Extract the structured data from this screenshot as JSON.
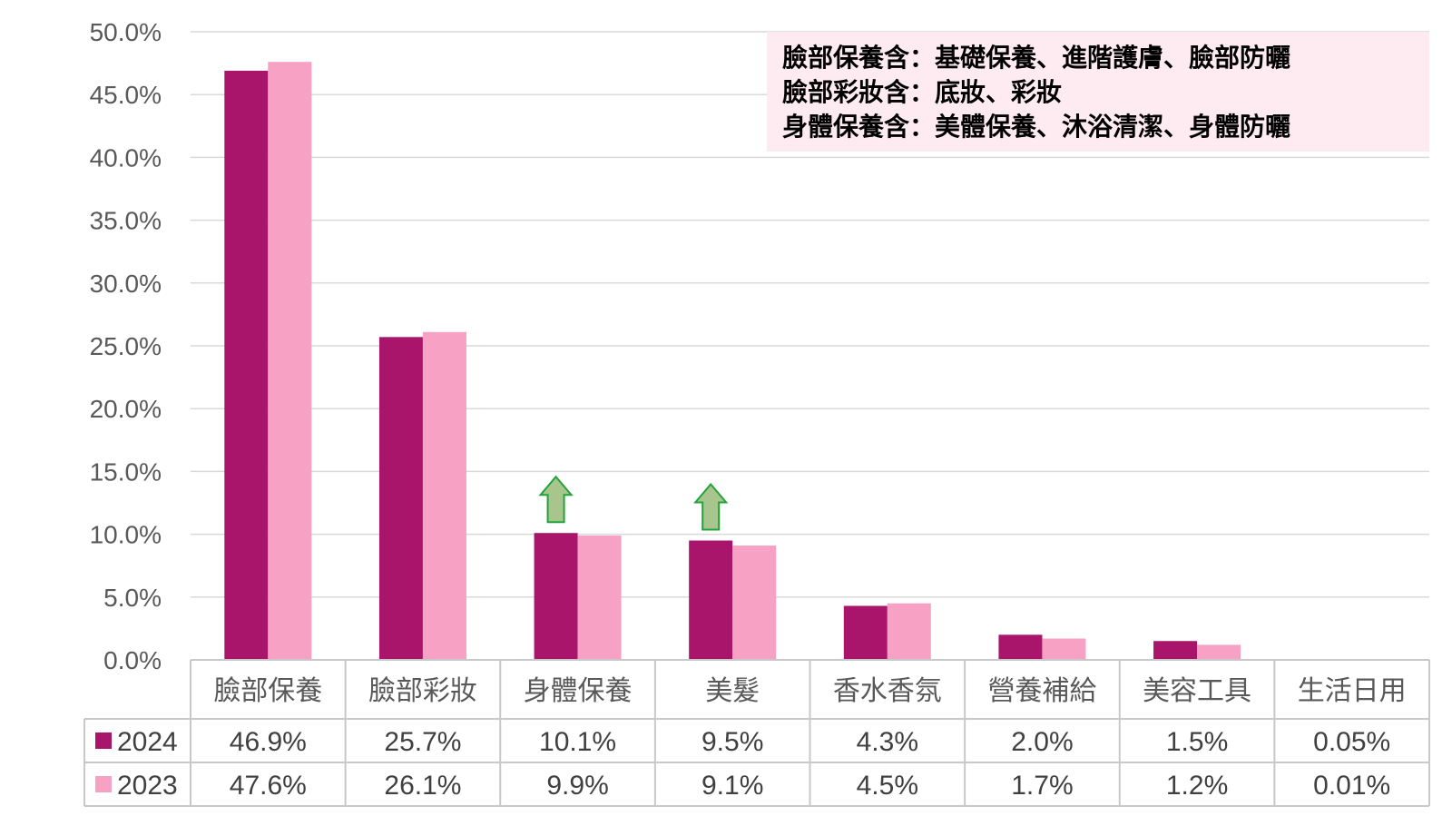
{
  "chart_data": {
    "type": "bar",
    "categories": [
      "臉部保養",
      "臉部彩妝",
      "身體保養",
      "美髮",
      "香水香氛",
      "營養補給",
      "美容工具",
      "生活日用"
    ],
    "series": [
      {
        "name": "2024",
        "color": "#A8156A",
        "values": [
          46.9,
          25.7,
          10.1,
          9.5,
          4.3,
          2.0,
          1.5,
          0.05
        ],
        "labels": [
          "46.9%",
          "25.7%",
          "10.1%",
          "9.5%",
          "4.3%",
          "2.0%",
          "1.5%",
          "0.05%"
        ]
      },
      {
        "name": "2023",
        "color": "#F7A1C4",
        "values": [
          47.6,
          26.1,
          9.9,
          9.1,
          4.5,
          1.7,
          1.2,
          0.01
        ],
        "labels": [
          "47.6%",
          "26.1%",
          "9.9%",
          "9.1%",
          "4.5%",
          "1.7%",
          "1.2%",
          "0.01%"
        ]
      }
    ],
    "ylim": [
      0,
      50
    ],
    "yticks": [
      "0.0%",
      "5.0%",
      "10.0%",
      "15.0%",
      "20.0%",
      "25.0%",
      "30.0%",
      "35.0%",
      "40.0%",
      "45.0%",
      "50.0%"
    ],
    "grid": true,
    "legend": "data-table",
    "up_arrows": [
      "身體保養",
      "美髮"
    ],
    "arrow_color": "#A9C58E",
    "annotation": [
      "臉部保養含：基礎保養、進階護膚、臉部防曬",
      "臉部彩妝含：底妝、彩妝",
      "身體保養含：美體保養、沐浴清潔、身體防曬"
    ],
    "annotation_bg": "#FDEBF1"
  }
}
